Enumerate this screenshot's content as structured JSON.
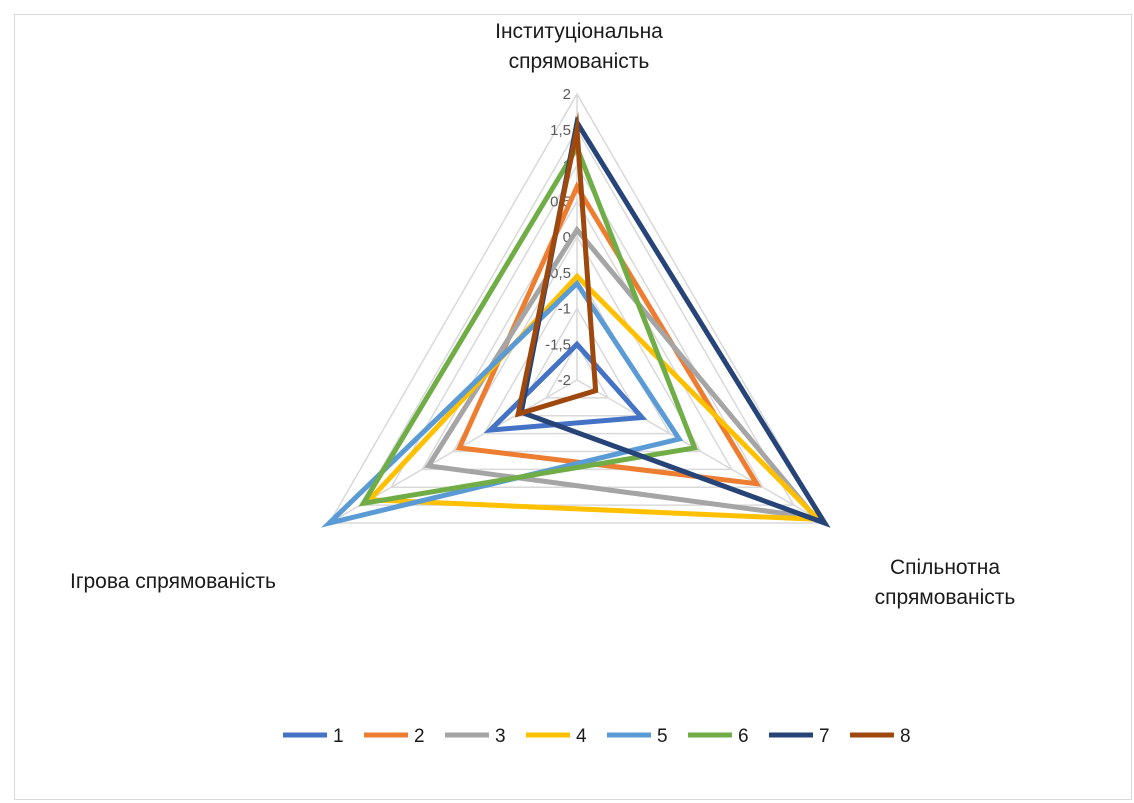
{
  "chart_data": {
    "type": "radar",
    "axes": [
      {
        "label_lines": [
          "Інституціональна",
          "спрямованість"
        ]
      },
      {
        "label_lines": [
          "Спільнотна",
          "спрямованість"
        ]
      },
      {
        "label_lines": [
          "Ігрова спрямованість"
        ]
      }
    ],
    "r_range": [
      -2,
      2
    ],
    "ticks": [
      "-2",
      "-1,5",
      "-1",
      "-0,5",
      "0",
      "0,5",
      "1",
      "1,5",
      "2"
    ],
    "tick_values": [
      -2,
      -1.5,
      -1,
      -0.5,
      0,
      0.5,
      1,
      1.5,
      2
    ],
    "grid": true,
    "legend_position": "bottom",
    "series": [
      {
        "name": "1",
        "color": "#4472C4",
        "values": [
          -1.5,
          -0.95,
          -0.6
        ]
      },
      {
        "name": "2",
        "color": "#ED7D31",
        "values": [
          0.7,
          0.9,
          -0.1
        ]
      },
      {
        "name": "3",
        "color": "#A5A5A5",
        "values": [
          0.1,
          1.85,
          0.4
        ]
      },
      {
        "name": "4",
        "color": "#FFC000",
        "values": [
          -0.55,
          1.9,
          1.35
        ]
      },
      {
        "name": "5",
        "color": "#5B9BD5",
        "values": [
          -0.65,
          -0.35,
          2.0
        ]
      },
      {
        "name": "6",
        "color": "#70AD47",
        "values": [
          1.25,
          -0.1,
          1.45
        ]
      },
      {
        "name": "7",
        "color": "#264478",
        "values": [
          1.6,
          2.0,
          -1.1
        ]
      },
      {
        "name": "8",
        "color": "#9E480E",
        "values": [
          1.5,
          -1.7,
          -1.05
        ]
      }
    ]
  }
}
